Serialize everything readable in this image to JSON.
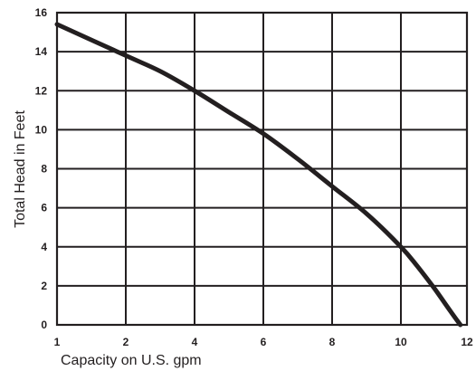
{
  "chart_data": {
    "type": "line",
    "xlabel": "Capacity on U.S. gpm",
    "ylabel": "Total Head in Feet",
    "xlim": [
      1,
      12
    ],
    "ylim": [
      0,
      16
    ],
    "x_ticks": [
      1,
      2,
      4,
      6,
      8,
      10,
      12
    ],
    "x_tick_labels": [
      "1",
      "2",
      "4",
      "6",
      "8",
      "10",
      "12"
    ],
    "y_ticks": [
      0,
      2,
      4,
      6,
      8,
      10,
      12,
      14,
      16
    ],
    "y_tick_labels": [
      "0",
      "2",
      "4",
      "6",
      "8",
      "10",
      "12",
      "14",
      "16"
    ],
    "grid": true,
    "legend": "none",
    "line_color": "#231f20",
    "series": [
      {
        "x": [
          1,
          2,
          3,
          4,
          5,
          6,
          7,
          8,
          9,
          10,
          10.5,
          11,
          11.5,
          11.8
        ],
        "y": [
          15.4,
          13.8,
          13.0,
          12.0,
          10.9,
          9.8,
          8.5,
          7.1,
          5.7,
          4.0,
          3.0,
          1.9,
          0.7,
          0
        ]
      }
    ]
  }
}
